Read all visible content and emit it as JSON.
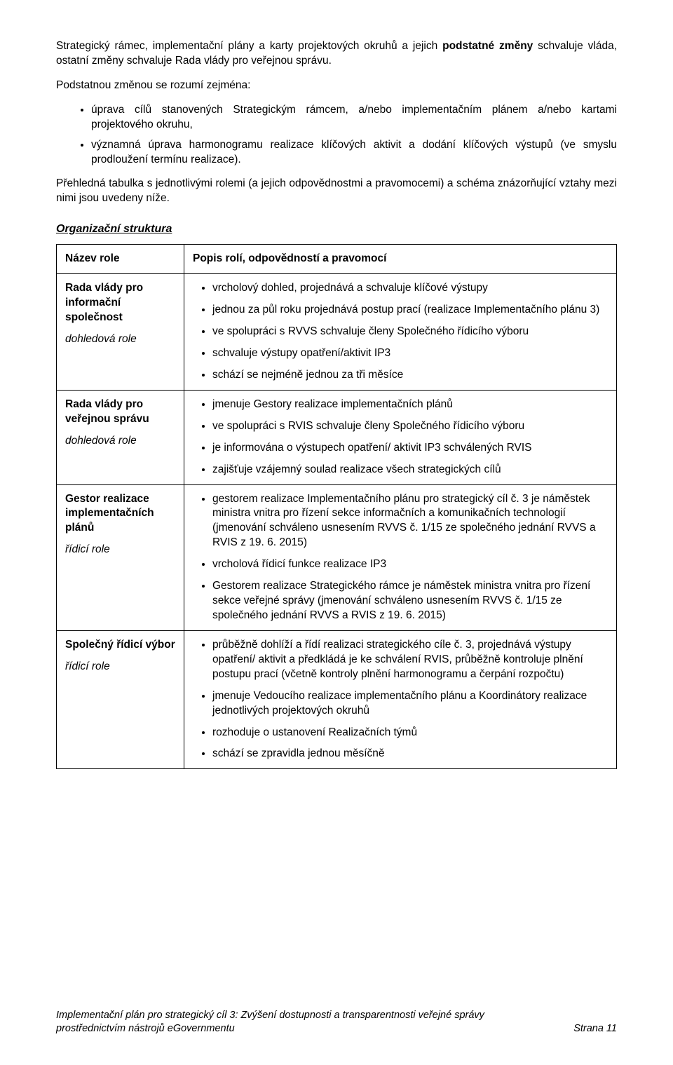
{
  "intro": {
    "p1_a": "Strategický rámec, implementační plány a karty projektových okruhů a jejich ",
    "p1_b": "podstatné změny",
    "p1_c": " schvaluje vláda, ostatní změny schvaluje Rada vlády pro veřejnou správu.",
    "p2": "Podstatnou změnou se rozumí zejména:",
    "bullets": [
      "úprava cílů stanovených Strategickým rámcem, a/nebo implementačním plánem a/nebo kartami projektového okruhu,",
      "významná úprava harmonogramu realizace klíčových aktivit a dodání klíčových výstupů (ve smyslu prodloužení termínu realizace)."
    ],
    "p3": "Přehledná tabulka s jednotlivými rolemi (a jejich odpovědnostmi a pravomocemi) a schéma znázorňující vztahy mezi nimi jsou uvedeny níže."
  },
  "org": {
    "heading": "Organizační struktura",
    "header_role": "Název role",
    "header_desc": "Popis rolí, odpovědností a pravomocí",
    "rows": [
      {
        "name": "Rada vlády pro informační společnost",
        "sub": "dohledová role",
        "items": [
          "vrcholový dohled, projednává a schvaluje klíčové výstupy",
          "jednou za půl roku projednává postup prací (realizace Implementačního plánu 3)",
          "ve spolupráci s RVVS schvaluje členy Společného řídicího výboru",
          "schvaluje výstupy opatření/aktivit IP3",
          "schází se nejméně jednou za tři měsíce"
        ]
      },
      {
        "name": "Rada vlády pro veřejnou správu",
        "sub": "dohledová role",
        "items": [
          "jmenuje Gestory realizace implementačních plánů",
          "ve spolupráci s RVIS schvaluje členy Společného řídicího výboru",
          "je informována o výstupech opatření/ aktivit IP3 schválených RVIS",
          "zajišťuje vzájemný soulad realizace všech strategických cílů"
        ]
      },
      {
        "name": "Gestor realizace implementačních plánů",
        "sub": "řídicí role",
        "items": [
          "gestorem realizace Implementačního plánu pro strategický cíl č. 3 je náměstek ministra vnitra pro řízení sekce informačních a komunikačních technologií (jmenování schváleno usnesením RVVS č. 1/15 ze společného jednání RVVS a RVIS z 19. 6. 2015)",
          "vrcholová řídicí funkce realizace IP3",
          "Gestorem realizace Strategického rámce je náměstek ministra vnitra pro řízení sekce veřejné správy (jmenování schváleno usnesením RVVS č. 1/15 ze společného jednání RVVS a RVIS z 19. 6. 2015)"
        ]
      },
      {
        "name": "Společný řídicí výbor",
        "sub": "řídicí role",
        "items": [
          "průběžně dohlíží a řídí realizaci strategického cíle č. 3, projednává výstupy opatření/ aktivit a předkládá je ke schválení RVIS, průběžně kontroluje plnění postupu prací (včetně kontroly plnění harmonogramu a čerpání rozpočtu)",
          "jmenuje Vedoucího realizace implementačního plánu a Koordinátory realizace jednotlivých projektových okruhů",
          "rozhoduje o ustanovení Realizačních týmů",
          "schází se zpravidla jednou měsíčně"
        ]
      }
    ]
  },
  "footer": {
    "line1": "Implementační plán pro strategický cíl 3: Zvýšení dostupnosti a transparentnosti veřejné správy",
    "line2": "prostřednictvím nástrojů eGovernmentu",
    "page": "Strana 11"
  }
}
